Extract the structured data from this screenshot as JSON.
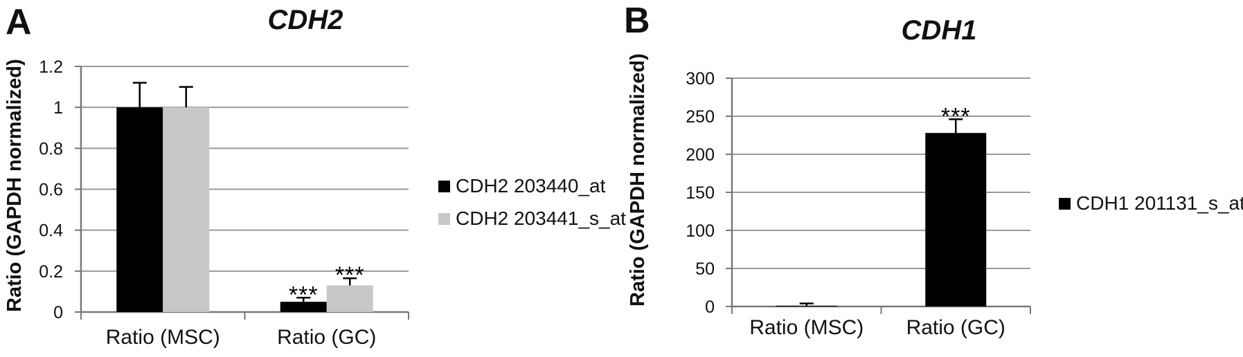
{
  "figure": {
    "background": "#ffffff"
  },
  "colors": {
    "axis": "#787878",
    "gridline": "#9a9a9a",
    "bar_black": "#000000",
    "bar_gray": "#c8c8c8",
    "text": "#111111"
  },
  "panels": [
    {
      "panel_label": "A",
      "title": "CDH2",
      "chart_data": {
        "type": "bar",
        "title": "CDH2",
        "xlabel": "",
        "ylabel": "Ratio (GAPDH normalized)",
        "categories": [
          "Ratio (MSC)",
          "Ratio (GC)"
        ],
        "ylim": [
          0,
          1.2
        ],
        "yticks": [
          0,
          0.2,
          0.4,
          0.6,
          0.8,
          1,
          1.2
        ],
        "ytick_labels": [
          "0",
          "0.2",
          "0.4",
          "0.6",
          "0.8",
          "1",
          "1.2"
        ],
        "grid": true,
        "legend_position": "right",
        "series": [
          {
            "name": "CDH2 203440_at",
            "color": "#000000",
            "values": [
              1.0,
              0.05
            ],
            "errors_plus": [
              0.12,
              0.02
            ]
          },
          {
            "name": "CDH2 203441_s_at",
            "color": "#c8c8c8",
            "values": [
              1.0,
              0.13
            ],
            "errors_plus": [
              0.1,
              0.035
            ]
          }
        ],
        "annotations": [
          {
            "category_index": 1,
            "series_index": 0,
            "text": "***"
          },
          {
            "category_index": 1,
            "series_index": 1,
            "text": "***"
          }
        ]
      }
    },
    {
      "panel_label": "B",
      "title": "CDH1",
      "chart_data": {
        "type": "bar",
        "title": "CDH1",
        "xlabel": "",
        "ylabel": "Ratio (GAPDH normalized)",
        "categories": [
          "Ratio (MSC)",
          "Ratio (GC)"
        ],
        "ylim": [
          0,
          300
        ],
        "yticks": [
          0,
          50,
          100,
          150,
          200,
          250,
          300
        ],
        "ytick_labels": [
          "0",
          "50",
          "100",
          "150",
          "200",
          "250",
          "300"
        ],
        "grid": true,
        "legend_position": "right",
        "series": [
          {
            "name": "CDH1 201131_s_at",
            "color": "#000000",
            "values": [
              1,
              228
            ],
            "errors_plus": [
              3,
              18
            ]
          }
        ],
        "annotations": [
          {
            "category_index": 1,
            "series_index": 0,
            "text": "***"
          }
        ]
      }
    }
  ]
}
